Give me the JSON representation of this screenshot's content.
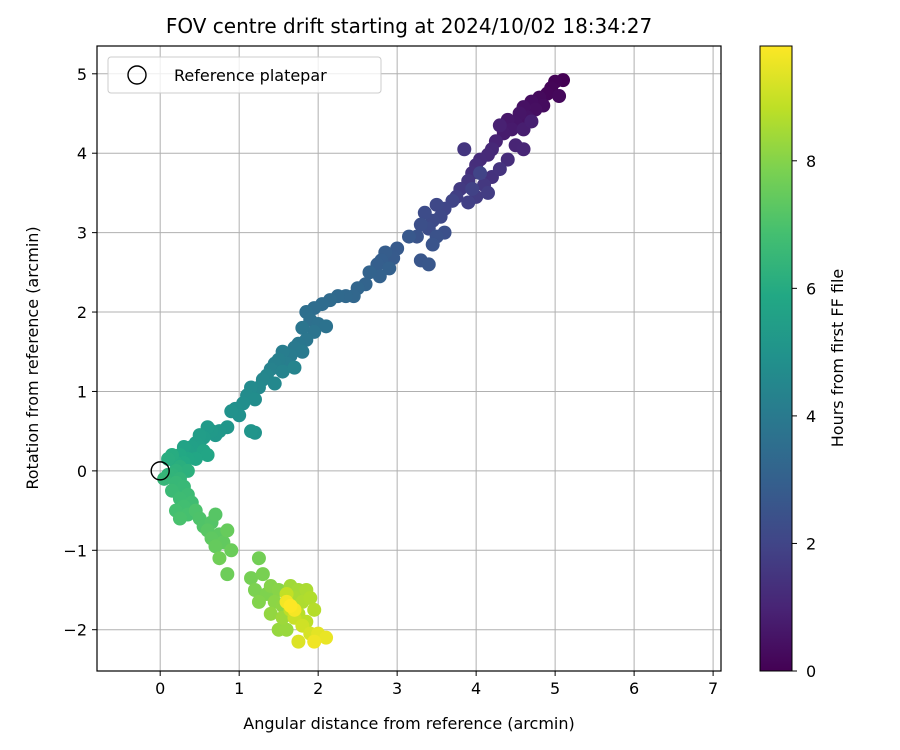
{
  "chart_data": {
    "type": "scatter",
    "title": "FOV centre drift starting at 2024/10/02 18:34:27",
    "xlabel": "Angular distance from reference (arcmin)",
    "ylabel": "Rotation from reference (arcmin)",
    "xlim": [
      -0.8,
      7.1
    ],
    "ylim": [
      -2.52,
      5.35
    ],
    "xticks": [
      "0",
      "1",
      "2",
      "3",
      "4",
      "5",
      "6",
      "7"
    ],
    "yticks": [
      "−2",
      "−1",
      "0",
      "1",
      "2",
      "3",
      "4",
      "5"
    ],
    "grid": true,
    "legend": {
      "position": "top-left",
      "entries": [
        "Reference platepar"
      ]
    },
    "reference_point": {
      "x": 0,
      "y": 0,
      "label": "Reference platepar"
    },
    "colorbar": {
      "label": "Hours from first FF file",
      "range": [
        0,
        9.8
      ],
      "ticks": [
        "0",
        "2",
        "4",
        "6",
        "8"
      ],
      "colormap": "viridis"
    },
    "series": [
      {
        "color_by": "hours",
        "points": [
          [
            5.1,
            4.92,
            0.0
          ],
          [
            5.0,
            4.9,
            0.05
          ],
          [
            4.95,
            4.82,
            0.1
          ],
          [
            4.9,
            4.75,
            0.15
          ],
          [
            5.05,
            4.72,
            0.2
          ],
          [
            4.8,
            4.7,
            0.25
          ],
          [
            4.85,
            4.6,
            0.3
          ],
          [
            4.7,
            4.65,
            0.35
          ],
          [
            4.75,
            4.55,
            0.4
          ],
          [
            4.6,
            4.58,
            0.45
          ],
          [
            4.65,
            4.45,
            0.5
          ],
          [
            4.55,
            4.5,
            0.55
          ],
          [
            4.5,
            4.38,
            0.6
          ],
          [
            4.4,
            4.42,
            0.65
          ],
          [
            4.45,
            4.3,
            0.7
          ],
          [
            4.35,
            4.25,
            0.75
          ],
          [
            4.6,
            4.3,
            0.8
          ],
          [
            4.7,
            4.4,
            0.85
          ],
          [
            4.3,
            4.35,
            0.9
          ],
          [
            4.25,
            4.15,
            0.95
          ],
          [
            4.5,
            4.1,
            1.0
          ],
          [
            4.6,
            4.05,
            1.05
          ],
          [
            4.2,
            4.05,
            1.1
          ],
          [
            4.15,
            3.98,
            1.15
          ],
          [
            4.05,
            3.92,
            1.2
          ],
          [
            4.4,
            3.92,
            1.25
          ],
          [
            4.0,
            3.85,
            1.3
          ],
          [
            3.95,
            3.75,
            1.35
          ],
          [
            4.2,
            3.7,
            1.4
          ],
          [
            4.3,
            3.8,
            1.45
          ],
          [
            3.85,
            4.05,
            1.5
          ],
          [
            3.9,
            3.65,
            1.55
          ],
          [
            4.1,
            3.6,
            1.6
          ],
          [
            3.8,
            3.55,
            1.65
          ],
          [
            4.0,
            3.45,
            1.7
          ],
          [
            4.15,
            3.5,
            1.75
          ],
          [
            3.75,
            3.45,
            1.8
          ],
          [
            3.9,
            3.38,
            1.85
          ],
          [
            3.95,
            3.55,
            1.9
          ],
          [
            4.05,
            3.75,
            1.95
          ],
          [
            3.7,
            3.4,
            2.0
          ],
          [
            3.6,
            3.3,
            2.05
          ],
          [
            3.5,
            3.35,
            2.1
          ],
          [
            3.55,
            3.2,
            2.15
          ],
          [
            3.45,
            3.15,
            2.2
          ],
          [
            3.35,
            3.25,
            2.25
          ],
          [
            3.4,
            3.05,
            2.3
          ],
          [
            3.3,
            3.1,
            2.35
          ],
          [
            3.6,
            3.0,
            2.4
          ],
          [
            3.5,
            2.95,
            2.45
          ],
          [
            3.25,
            2.95,
            2.5
          ],
          [
            3.45,
            2.85,
            2.55
          ],
          [
            3.3,
            2.65,
            2.6
          ],
          [
            3.4,
            2.6,
            2.65
          ],
          [
            3.15,
            2.95,
            2.7
          ],
          [
            3.0,
            2.8,
            2.75
          ],
          [
            2.95,
            2.68,
            2.8
          ],
          [
            2.85,
            2.75,
            2.85
          ],
          [
            2.8,
            2.65,
            2.9
          ],
          [
            2.75,
            2.6,
            2.95
          ],
          [
            2.9,
            2.55,
            3.0
          ],
          [
            2.78,
            2.45,
            3.05
          ],
          [
            2.65,
            2.5,
            3.1
          ],
          [
            2.6,
            2.35,
            3.15
          ],
          [
            2.5,
            2.3,
            3.2
          ],
          [
            2.45,
            2.2,
            3.25
          ],
          [
            2.35,
            2.2,
            3.3
          ],
          [
            2.25,
            2.2,
            3.35
          ],
          [
            2.15,
            2.15,
            3.4
          ],
          [
            2.05,
            2.1,
            3.45
          ],
          [
            1.95,
            2.05,
            3.5
          ],
          [
            1.85,
            2.0,
            3.55
          ],
          [
            1.9,
            1.9,
            3.6
          ],
          [
            2.0,
            1.85,
            3.65
          ],
          [
            2.1,
            1.82,
            3.7
          ],
          [
            1.95,
            1.75,
            3.75
          ],
          [
            1.8,
            1.8,
            3.8
          ],
          [
            1.85,
            1.65,
            3.85
          ],
          [
            1.75,
            1.6,
            3.9
          ],
          [
            1.7,
            1.55,
            3.95
          ],
          [
            1.8,
            1.5,
            4.0
          ],
          [
            1.65,
            1.45,
            4.05
          ],
          [
            1.55,
            1.5,
            4.1
          ],
          [
            1.6,
            1.35,
            4.15
          ],
          [
            1.5,
            1.4,
            4.2
          ],
          [
            1.45,
            1.35,
            4.25
          ],
          [
            1.4,
            1.28,
            4.3
          ],
          [
            1.55,
            1.25,
            4.35
          ],
          [
            1.7,
            1.3,
            4.4
          ],
          [
            1.35,
            1.2,
            4.45
          ],
          [
            1.3,
            1.15,
            4.5
          ],
          [
            1.45,
            1.1,
            4.55
          ],
          [
            1.25,
            1.05,
            4.6
          ],
          [
            1.15,
            1.05,
            4.65
          ],
          [
            1.1,
            0.95,
            4.7
          ],
          [
            1.2,
            0.9,
            4.75
          ],
          [
            1.05,
            0.85,
            4.8
          ],
          [
            0.95,
            0.78,
            4.85
          ],
          [
            1.0,
            0.7,
            4.9
          ],
          [
            0.9,
            0.75,
            4.95
          ],
          [
            1.2,
            0.48,
            5.0
          ],
          [
            1.15,
            0.5,
            5.05
          ],
          [
            0.85,
            0.55,
            5.1
          ],
          [
            0.75,
            0.5,
            5.15
          ],
          [
            0.7,
            0.45,
            5.2
          ],
          [
            0.65,
            0.5,
            5.25
          ],
          [
            0.6,
            0.55,
            5.3
          ],
          [
            0.55,
            0.42,
            5.35
          ],
          [
            0.5,
            0.45,
            5.4
          ],
          [
            0.45,
            0.35,
            5.45
          ],
          [
            0.5,
            0.3,
            5.5
          ],
          [
            0.4,
            0.3,
            5.55
          ],
          [
            0.35,
            0.25,
            5.6
          ],
          [
            0.3,
            0.3,
            5.65
          ],
          [
            0.55,
            0.25,
            5.7
          ],
          [
            0.6,
            0.2,
            5.75
          ],
          [
            0.45,
            0.15,
            5.8
          ],
          [
            0.35,
            0.15,
            5.85
          ],
          [
            0.25,
            0.2,
            5.9
          ],
          [
            0.3,
            0.1,
            5.95
          ],
          [
            0.2,
            0.1,
            6.0
          ],
          [
            0.15,
            0.2,
            6.05
          ],
          [
            0.1,
            0.15,
            6.1
          ],
          [
            0.25,
            0.05,
            6.15
          ],
          [
            0.35,
            0.0,
            6.2
          ],
          [
            0.2,
            0.0,
            6.25
          ],
          [
            0.15,
            -0.05,
            6.3
          ],
          [
            0.1,
            -0.05,
            6.35
          ],
          [
            0.25,
            -0.1,
            6.4
          ],
          [
            0.05,
            -0.1,
            6.45
          ],
          [
            0.2,
            -0.15,
            6.5
          ],
          [
            0.3,
            -0.2,
            6.55
          ],
          [
            0.15,
            -0.25,
            6.6
          ],
          [
            0.35,
            -0.3,
            6.65
          ],
          [
            0.25,
            -0.35,
            6.7
          ],
          [
            0.4,
            -0.4,
            6.75
          ],
          [
            0.3,
            -0.45,
            6.8
          ],
          [
            0.2,
            -0.5,
            6.85
          ],
          [
            0.35,
            -0.55,
            6.9
          ],
          [
            0.25,
            -0.6,
            6.95
          ],
          [
            0.45,
            -0.5,
            7.0
          ],
          [
            0.5,
            -0.6,
            7.05
          ],
          [
            0.55,
            -0.7,
            7.1
          ],
          [
            0.65,
            -0.65,
            7.15
          ],
          [
            0.7,
            -0.55,
            7.2
          ],
          [
            0.6,
            -0.75,
            7.25
          ],
          [
            0.75,
            -0.8,
            7.3
          ],
          [
            0.65,
            -0.85,
            7.35
          ],
          [
            0.8,
            -0.9,
            7.4
          ],
          [
            0.7,
            -0.95,
            7.45
          ],
          [
            0.85,
            -0.75,
            7.5
          ],
          [
            0.9,
            -1.0,
            7.55
          ],
          [
            0.85,
            -1.3,
            7.6
          ],
          [
            0.75,
            -1.1,
            7.65
          ],
          [
            1.25,
            -1.1,
            7.7
          ],
          [
            1.15,
            -1.35,
            7.75
          ],
          [
            1.3,
            -1.3,
            7.8
          ],
          [
            1.2,
            -1.5,
            7.85
          ],
          [
            1.35,
            -1.55,
            7.9
          ],
          [
            1.25,
            -1.65,
            7.95
          ],
          [
            1.4,
            -1.45,
            8.0
          ],
          [
            1.5,
            -1.5,
            8.05
          ],
          [
            1.45,
            -1.65,
            8.1
          ],
          [
            1.55,
            -1.7,
            8.15
          ],
          [
            1.4,
            -1.8,
            8.2
          ],
          [
            1.5,
            -2.0,
            8.25
          ],
          [
            1.6,
            -2.0,
            8.3
          ],
          [
            1.55,
            -1.85,
            8.35
          ],
          [
            1.65,
            -1.45,
            8.4
          ],
          [
            1.75,
            -1.5,
            8.45
          ],
          [
            1.7,
            -1.6,
            8.5
          ],
          [
            1.85,
            -1.5,
            8.55
          ],
          [
            1.8,
            -1.65,
            8.6
          ],
          [
            1.9,
            -1.6,
            8.65
          ],
          [
            1.95,
            -1.75,
            8.7
          ],
          [
            1.75,
            -1.8,
            8.75
          ],
          [
            1.85,
            -1.9,
            8.8
          ],
          [
            1.65,
            -1.75,
            8.85
          ],
          [
            1.6,
            -1.55,
            8.9
          ],
          [
            1.7,
            -1.85,
            9.0
          ],
          [
            1.8,
            -1.95,
            9.1
          ],
          [
            1.9,
            -2.05,
            9.2
          ],
          [
            1.75,
            -2.15,
            9.3
          ],
          [
            2.0,
            -2.05,
            9.4
          ],
          [
            2.1,
            -2.1,
            9.5
          ],
          [
            1.95,
            -2.15,
            9.6
          ],
          [
            1.6,
            -1.65,
            9.65
          ],
          [
            1.7,
            -1.75,
            9.7
          ],
          [
            1.65,
            -1.7,
            9.8
          ]
        ]
      }
    ]
  }
}
